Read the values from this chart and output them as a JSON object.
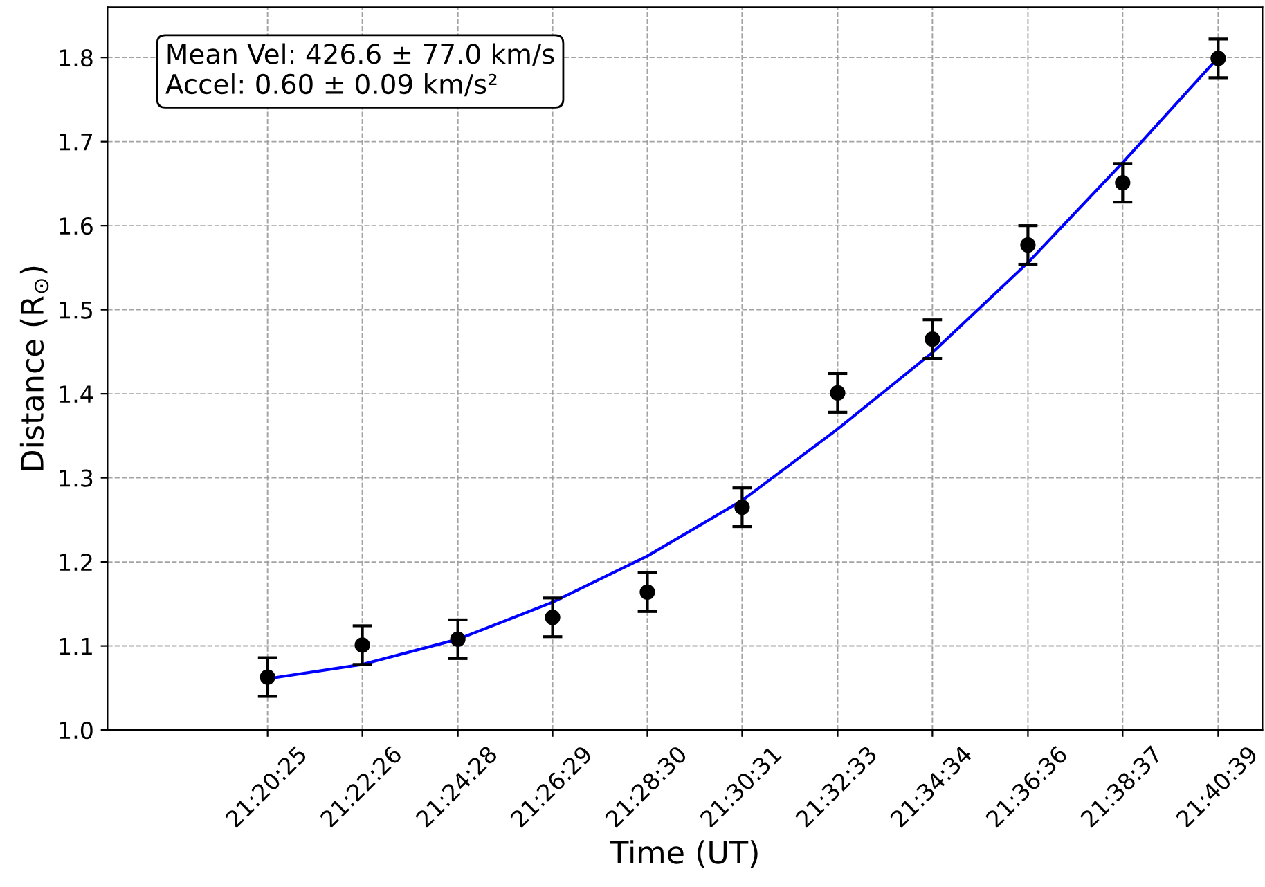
{
  "chart_data": {
    "type": "scatter",
    "xlabel": "Time (UT)",
    "ylabel": "Distance (R$_{⊙}$)",
    "annotations": [
      "Mean Vel: 426.6 ± 77.0 km/s\nAccel: 0.60 ± 0.09 km/s²"
    ],
    "xlim": [
      21.2835,
      21.6932
    ],
    "ylim": [
      1.0,
      1.86
    ],
    "xticks": [
      {
        "value": 21.340278,
        "label": "21:20:25"
      },
      {
        "value": 21.373889,
        "label": "21:22:26"
      },
      {
        "value": 21.407778,
        "label": "21:24:28"
      },
      {
        "value": 21.441389,
        "label": "21:26:29"
      },
      {
        "value": 21.475,
        "label": "21:28:30"
      },
      {
        "value": 21.508611,
        "label": "21:30:31"
      },
      {
        "value": 21.5425,
        "label": "21:32:33"
      },
      {
        "value": 21.576111,
        "label": "21:34:34"
      },
      {
        "value": 21.61,
        "label": "21:36:36"
      },
      {
        "value": 21.643611,
        "label": "21:38:37"
      },
      {
        "value": 21.6775,
        "label": "21:40:39"
      }
    ],
    "yticks": [
      {
        "value": 1.0,
        "label": "1.0"
      },
      1.1,
      1.2,
      1.3,
      1.4,
      1.5,
      1.6,
      1.7,
      1.8
    ],
    "grid": true,
    "marker": "circle",
    "series": [
      {
        "color": "#000000",
        "x": [
          21.340278,
          21.373889,
          21.407778,
          21.441389,
          21.475,
          21.508611,
          21.5425,
          21.576111,
          21.61,
          21.643611,
          21.6775
        ],
        "values": [
          1.063,
          1.101,
          1.108,
          1.134,
          1.164,
          1.265,
          1.401,
          1.465,
          1.577,
          1.651,
          1.799
        ],
        "errors": [
          0.023,
          0.023,
          0.023,
          0.023,
          0.023,
          0.023,
          0.023,
          0.023,
          0.023,
          0.023,
          0.023
        ]
      },
      {
        "type": "line",
        "color": "#0000ff",
        "marker": "none",
        "x": [
          21.340278,
          21.373889,
          21.407778,
          21.441389,
          21.475,
          21.508611,
          21.5425,
          21.576111,
          21.61,
          21.643611,
          21.6775
        ],
        "values": [
          1.061,
          1.078,
          1.108,
          1.152,
          1.207,
          1.273,
          1.358,
          1.449,
          1.556,
          1.675,
          1.8
        ]
      }
    ]
  }
}
